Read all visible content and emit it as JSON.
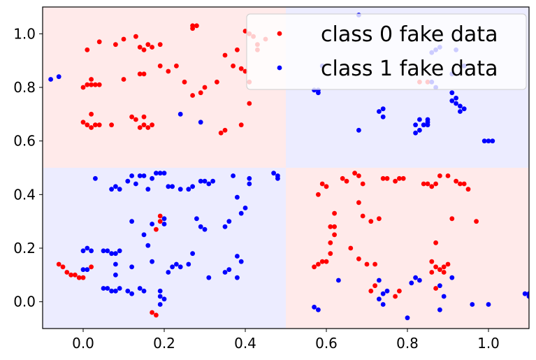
{
  "chart_data": {
    "type": "scatter",
    "title": "",
    "xlabel": "",
    "ylabel": "",
    "xlim": [
      -0.1,
      1.1
    ],
    "ylim": [
      -0.1,
      1.1
    ],
    "grid": false,
    "legend_position": "top-right",
    "x_ticks": [
      "0.0",
      "0.2",
      "0.4",
      "0.6",
      "0.8",
      "1.0"
    ],
    "y_ticks": [
      "0.0",
      "0.2",
      "0.4",
      "0.6",
      "0.8",
      "1.0"
    ],
    "background_regions": [
      {
        "x": [
          -0.1,
          0.5
        ],
        "y": [
          0.5,
          1.1
        ],
        "class": 0,
        "color": "#ffeaea"
      },
      {
        "x": [
          0.5,
          1.1
        ],
        "y": [
          0.5,
          1.1
        ],
        "class": 1,
        "color": "#ececff"
      },
      {
        "x": [
          -0.1,
          0.5
        ],
        "y": [
          -0.1,
          0.5
        ],
        "class": 1,
        "color": "#ececff"
      },
      {
        "x": [
          0.5,
          1.1
        ],
        "y": [
          -0.1,
          0.5
        ],
        "class": 0,
        "color": "#ffeaea"
      }
    ],
    "series": [
      {
        "name": "class 0 fake data",
        "color": "#ff0000",
        "points": [
          [
            0.01,
            0.94
          ],
          [
            0.04,
            0.97
          ],
          [
            0.08,
            0.96
          ],
          [
            0.1,
            0.98
          ],
          [
            0.13,
            0.99
          ],
          [
            0.14,
            0.95
          ],
          [
            0.15,
            0.94
          ],
          [
            0.16,
            0.96
          ],
          [
            0.17,
            0.95
          ],
          [
            0.19,
            0.88
          ],
          [
            0.19,
            0.96
          ],
          [
            0.21,
            0.86
          ],
          [
            0.23,
            0.88
          ],
          [
            0.27,
            1.02
          ],
          [
            0.27,
            1.03
          ],
          [
            0.28,
            1.03
          ],
          [
            0.29,
            0.78
          ],
          [
            0.3,
            0.8
          ],
          [
            0.33,
            0.82
          ],
          [
            0.35,
            0.92
          ],
          [
            0.37,
            0.88
          ],
          [
            0.38,
            0.94
          ],
          [
            0.39,
            0.87
          ],
          [
            0.4,
            0.86
          ],
          [
            0.41,
            0.82
          ],
          [
            0.4,
            1.01
          ],
          [
            0.41,
            1.0
          ],
          [
            0.41,
            0.74
          ],
          [
            0.39,
            0.66
          ],
          [
            0.35,
            0.64
          ],
          [
            0.34,
            0.63
          ],
          [
            0.0,
            0.8
          ],
          [
            0.01,
            0.81
          ],
          [
            0.02,
            0.81
          ],
          [
            0.03,
            0.81
          ],
          [
            0.04,
            0.81
          ],
          [
            0.02,
            0.83
          ],
          [
            0.14,
            0.85
          ],
          [
            0.15,
            0.85
          ],
          [
            0.1,
            0.83
          ],
          [
            0.27,
            0.77
          ],
          [
            0.25,
            0.82
          ],
          [
            0.0,
            0.67
          ],
          [
            0.01,
            0.66
          ],
          [
            0.02,
            0.65
          ],
          [
            0.03,
            0.66
          ],
          [
            0.04,
            0.66
          ],
          [
            0.07,
            0.66
          ],
          [
            0.02,
            0.7
          ],
          [
            0.12,
            0.69
          ],
          [
            0.13,
            0.68
          ],
          [
            0.14,
            0.65
          ],
          [
            0.15,
            0.66
          ],
          [
            0.16,
            0.65
          ],
          [
            0.17,
            0.66
          ],
          [
            0.15,
            0.69
          ],
          [
            0.42,
            0.99
          ],
          [
            0.43,
            0.96
          ],
          [
            0.43,
            0.94
          ],
          [
            0.45,
            0.98
          ],
          [
            -0.06,
            0.14
          ],
          [
            -0.05,
            0.13
          ],
          [
            -0.04,
            0.11
          ],
          [
            -0.03,
            0.1
          ],
          [
            -0.02,
            0.1
          ],
          [
            -0.01,
            0.09
          ],
          [
            0.0,
            0.09
          ],
          [
            0.02,
            0.13
          ],
          [
            0.18,
            0.27
          ],
          [
            0.19,
            0.32
          ],
          [
            0.19,
            0.3
          ],
          [
            0.17,
            -0.04
          ],
          [
            0.18,
            -0.05
          ],
          [
            0.57,
            0.13
          ],
          [
            0.58,
            0.14
          ],
          [
            0.59,
            0.15
          ],
          [
            0.6,
            0.15
          ],
          [
            0.61,
            0.18
          ],
          [
            0.61,
            0.22
          ],
          [
            0.62,
            0.25
          ],
          [
            0.61,
            0.28
          ],
          [
            0.62,
            0.28
          ],
          [
            0.62,
            0.33
          ],
          [
            0.58,
            0.4
          ],
          [
            0.59,
            0.44
          ],
          [
            0.6,
            0.43
          ],
          [
            0.64,
            0.46
          ],
          [
            0.65,
            0.45
          ],
          [
            0.67,
            0.48
          ],
          [
            0.68,
            0.47
          ],
          [
            0.69,
            0.44
          ],
          [
            0.68,
            0.37
          ],
          [
            0.69,
            0.32
          ],
          [
            0.71,
            0.3
          ],
          [
            0.73,
            0.31
          ],
          [
            0.66,
            0.2
          ],
          [
            0.68,
            0.16
          ],
          [
            0.7,
            0.14
          ],
          [
            0.72,
            0.14
          ],
          [
            0.72,
            0.06
          ],
          [
            0.71,
            0.04
          ],
          [
            0.77,
            0.02
          ],
          [
            0.78,
            0.04
          ],
          [
            0.74,
            0.46
          ],
          [
            0.75,
            0.46
          ],
          [
            0.77,
            0.45
          ],
          [
            0.78,
            0.46
          ],
          [
            0.79,
            0.46
          ],
          [
            0.84,
            0.44
          ],
          [
            0.85,
            0.44
          ],
          [
            0.86,
            0.43
          ],
          [
            0.87,
            0.44
          ],
          [
            0.88,
            0.47
          ],
          [
            0.9,
            0.47
          ],
          [
            0.92,
            0.45
          ],
          [
            0.93,
            0.44
          ],
          [
            0.94,
            0.44
          ],
          [
            0.95,
            0.42
          ],
          [
            0.97,
            0.3
          ],
          [
            0.91,
            0.31
          ],
          [
            0.87,
            0.22
          ],
          [
            0.86,
            0.15
          ],
          [
            0.87,
            0.13
          ],
          [
            0.88,
            0.12
          ],
          [
            0.89,
            0.11
          ],
          [
            0.89,
            0.13
          ],
          [
            0.9,
            0.14
          ],
          [
            0.86,
            0.11
          ],
          [
            0.87,
            0.05
          ],
          [
            0.83,
            0.82
          ],
          [
            0.85,
            0.82
          ]
        ]
      },
      {
        "name": "class 1 fake data",
        "color": "#0000ff",
        "points": [
          [
            -0.08,
            0.83
          ],
          [
            -0.06,
            0.84
          ],
          [
            0.24,
            0.7
          ],
          [
            0.29,
            0.67
          ],
          [
            0.57,
            0.79
          ],
          [
            0.58,
            0.78
          ],
          [
            0.58,
            0.79
          ],
          [
            0.68,
            0.64
          ],
          [
            0.73,
            0.71
          ],
          [
            0.74,
            0.72
          ],
          [
            0.74,
            0.69
          ],
          [
            0.82,
            0.66
          ],
          [
            0.83,
            0.68
          ],
          [
            0.84,
            0.66
          ],
          [
            0.85,
            0.66
          ],
          [
            0.85,
            0.68
          ],
          [
            0.85,
            0.67
          ],
          [
            0.83,
            0.64
          ],
          [
            0.82,
            0.63
          ],
          [
            0.91,
            0.75
          ],
          [
            0.92,
            0.74
          ],
          [
            0.93,
            0.73
          ],
          [
            0.93,
            0.71
          ],
          [
            0.94,
            0.72
          ],
          [
            0.91,
            0.78
          ],
          [
            0.92,
            0.76
          ],
          [
            0.99,
            0.6
          ],
          [
            1.0,
            0.6
          ],
          [
            1.01,
            0.6
          ],
          [
            0.03,
            0.46
          ],
          [
            0.07,
            0.42
          ],
          [
            0.08,
            0.43
          ],
          [
            0.09,
            0.42
          ],
          [
            0.11,
            0.45
          ],
          [
            0.12,
            0.47
          ],
          [
            0.13,
            0.44
          ],
          [
            0.14,
            0.47
          ],
          [
            0.15,
            0.47
          ],
          [
            0.17,
            0.46
          ],
          [
            0.16,
            0.42
          ],
          [
            0.18,
            0.48
          ],
          [
            0.19,
            0.48
          ],
          [
            0.2,
            0.48
          ],
          [
            0.21,
            0.43
          ],
          [
            0.22,
            0.43
          ],
          [
            0.24,
            0.42
          ],
          [
            0.26,
            0.42
          ],
          [
            0.27,
            0.43
          ],
          [
            0.29,
            0.45
          ],
          [
            0.3,
            0.45
          ],
          [
            0.31,
            0.44
          ],
          [
            0.32,
            0.45
          ],
          [
            0.37,
            0.47
          ],
          [
            0.41,
            0.46
          ],
          [
            0.41,
            0.44
          ],
          [
            0.47,
            0.48
          ],
          [
            0.48,
            0.46
          ],
          [
            0.48,
            0.47
          ],
          [
            0.15,
            0.25
          ],
          [
            0.12,
            0.3
          ],
          [
            0.17,
            0.29
          ],
          [
            0.2,
            0.29
          ],
          [
            0.2,
            0.31
          ],
          [
            0.28,
            0.31
          ],
          [
            0.29,
            0.28
          ],
          [
            0.3,
            0.27
          ],
          [
            0.35,
            0.28
          ],
          [
            0.36,
            0.3
          ],
          [
            0.39,
            0.33
          ],
          [
            0.4,
            0.35
          ],
          [
            0.38,
            0.39
          ],
          [
            0.0,
            0.19
          ],
          [
            0.01,
            0.2
          ],
          [
            0.02,
            0.19
          ],
          [
            0.05,
            0.19
          ],
          [
            0.06,
            0.19
          ],
          [
            0.07,
            0.18
          ],
          [
            0.08,
            0.18
          ],
          [
            0.09,
            0.19
          ],
          [
            0.08,
            0.14
          ],
          [
            0.08,
            0.1
          ],
          [
            0.16,
            0.21
          ],
          [
            0.17,
            0.15
          ],
          [
            0.21,
            0.11
          ],
          [
            0.22,
            0.13
          ],
          [
            0.23,
            0.14
          ],
          [
            0.24,
            0.13
          ],
          [
            0.26,
            0.14
          ],
          [
            0.27,
            0.18
          ],
          [
            0.31,
            0.09
          ],
          [
            0.35,
            0.11
          ],
          [
            0.36,
            0.12
          ],
          [
            0.38,
            0.17
          ],
          [
            0.39,
            0.15
          ],
          [
            0.38,
            0.09
          ],
          [
            0.0,
            0.12
          ],
          [
            0.01,
            0.12
          ],
          [
            0.05,
            0.05
          ],
          [
            0.06,
            0.05
          ],
          [
            0.07,
            0.04
          ],
          [
            0.08,
            0.04
          ],
          [
            0.09,
            0.05
          ],
          [
            0.11,
            0.04
          ],
          [
            0.12,
            0.03
          ],
          [
            0.14,
            0.05
          ],
          [
            0.15,
            0.04
          ],
          [
            0.19,
            0.04
          ],
          [
            0.19,
            0.02
          ],
          [
            0.2,
            0.01
          ],
          [
            0.19,
            -0.01
          ],
          [
            0.12,
            0.13
          ],
          [
            0.63,
            0.08
          ],
          [
            0.57,
            -0.02
          ],
          [
            0.58,
            -0.03
          ],
          [
            0.73,
            0.08
          ],
          [
            0.73,
            0.01
          ],
          [
            0.74,
            -0.01
          ],
          [
            0.74,
            0.03
          ],
          [
            0.75,
            0.04
          ],
          [
            0.8,
            -0.06
          ],
          [
            0.81,
            0.07
          ],
          [
            0.82,
            0.09
          ],
          [
            0.83,
            0.08
          ],
          [
            0.88,
            -0.03
          ],
          [
            0.88,
            0.06
          ],
          [
            0.91,
            0.09
          ],
          [
            0.89,
            0.02
          ],
          [
            0.96,
            -0.01
          ],
          [
            1.0,
            -0.01
          ],
          [
            1.09,
            0.03
          ],
          [
            1.1,
            0.02
          ],
          [
            1.1,
            0.03
          ],
          [
            0.59,
            0.88
          ],
          [
            0.68,
            1.07
          ],
          [
            0.86,
            0.93
          ],
          [
            0.87,
            0.94
          ],
          [
            0.88,
            0.95
          ],
          [
            0.92,
            0.94
          ],
          [
            0.94,
            0.88
          ],
          [
            0.91,
            0.85
          ],
          [
            0.86,
            0.82
          ],
          [
            0.87,
            0.8
          ]
        ]
      }
    ]
  }
}
